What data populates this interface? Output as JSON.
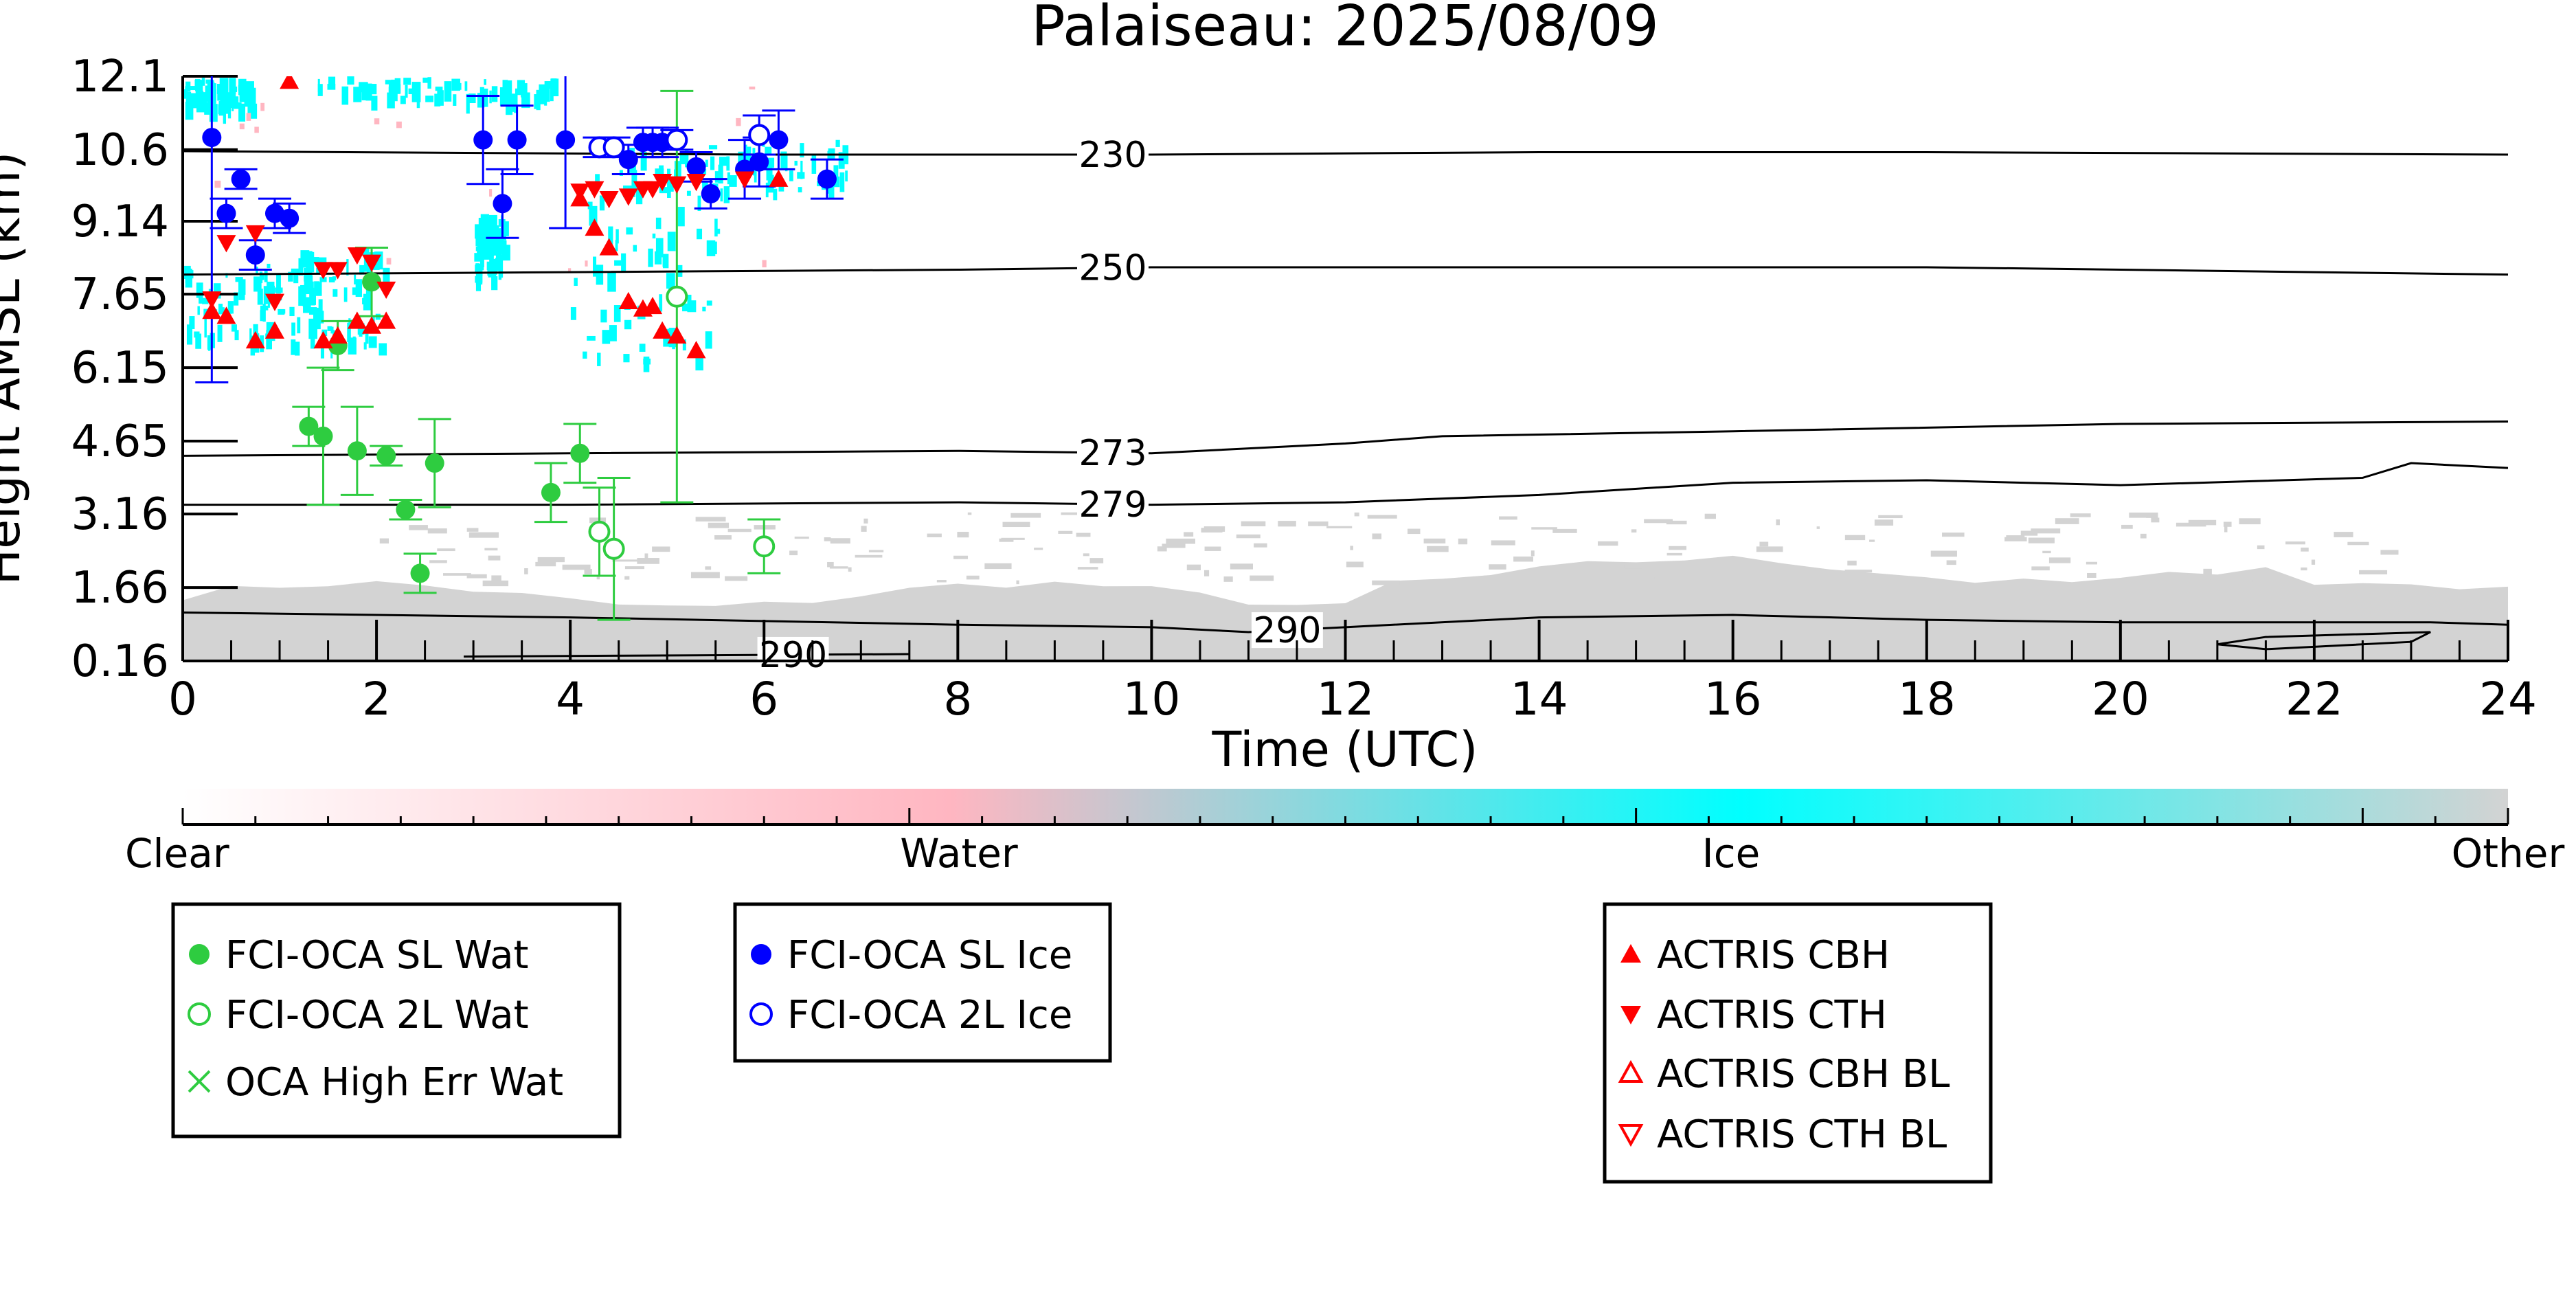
{
  "chart_data": {
    "type": "scatter",
    "title": "Palaiseau: 2025/08/09",
    "xlabel": "Time (UTC)",
    "ylabel": "Height AMSL (km)",
    "xlim": [
      0,
      24
    ],
    "ylim": [
      0.16,
      12.1
    ],
    "x_ticks": [
      "0",
      "2",
      "4",
      "6",
      "8",
      "10",
      "12",
      "14",
      "16",
      "18",
      "20",
      "22",
      "24"
    ],
    "y_ticks": [
      "0.16",
      "1.66",
      "3.16",
      "4.65",
      "6.15",
      "7.65",
      "9.14",
      "10.6",
      "12.1"
    ],
    "y_tick_values": [
      0.16,
      1.66,
      3.16,
      4.65,
      6.15,
      7.65,
      9.14,
      10.6,
      12.1
    ],
    "colorbar": {
      "labels": [
        "Clear",
        "Water",
        "Ice",
        "Other"
      ],
      "colors": [
        "#ffffff",
        "#ffb6c1",
        "#00ffff",
        "#d3d3d3"
      ]
    },
    "temperature_contours": [
      {
        "label": "230",
        "points": [
          [
            0,
            10.57
          ],
          [
            6,
            10.5
          ],
          [
            10,
            10.5
          ],
          [
            14,
            10.55
          ],
          [
            18,
            10.55
          ],
          [
            24,
            10.5
          ]
        ],
        "label_x": 9.6
      },
      {
        "label": "250",
        "points": [
          [
            0,
            8.05
          ],
          [
            4,
            8.1
          ],
          [
            8,
            8.15
          ],
          [
            10,
            8.2
          ],
          [
            14,
            8.2
          ],
          [
            18,
            8.2
          ],
          [
            22,
            8.1
          ],
          [
            24,
            8.05
          ]
        ],
        "label_x": 9.6
      },
      {
        "label": "273",
        "points": [
          [
            0,
            4.35
          ],
          [
            4,
            4.4
          ],
          [
            8,
            4.45
          ],
          [
            10,
            4.4
          ],
          [
            12,
            4.6
          ],
          [
            13,
            4.75
          ],
          [
            16,
            4.85
          ],
          [
            20,
            5.0
          ],
          [
            24,
            5.05
          ]
        ],
        "label_x": 9.6
      },
      {
        "label": "279",
        "points": [
          [
            0,
            3.35
          ],
          [
            4,
            3.35
          ],
          [
            8,
            3.4
          ],
          [
            10,
            3.35
          ],
          [
            12,
            3.4
          ],
          [
            14,
            3.55
          ],
          [
            16,
            3.8
          ],
          [
            18,
            3.85
          ],
          [
            20,
            3.75
          ],
          [
            22.5,
            3.9
          ],
          [
            23,
            4.2
          ],
          [
            24,
            4.1
          ]
        ],
        "label_x": 9.6
      },
      {
        "label": "290",
        "points": [
          [
            0,
            1.15
          ],
          [
            4,
            1.05
          ],
          [
            8,
            0.9
          ],
          [
            10,
            0.85
          ],
          [
            11,
            0.75
          ],
          [
            12,
            0.85
          ],
          [
            14,
            1.05
          ],
          [
            16,
            1.1
          ],
          [
            18,
            1.0
          ],
          [
            20,
            0.95
          ],
          [
            23.2,
            0.95
          ],
          [
            24,
            0.9
          ]
        ],
        "label_x": 11.4
      },
      {
        "label": "290",
        "points": [
          [
            2.9,
            0.25
          ],
          [
            7.5,
            0.3
          ]
        ],
        "label_x": 6.3
      },
      {
        "label": "",
        "points": [
          [
            21,
            0.5
          ],
          [
            21.5,
            0.65
          ],
          [
            23.2,
            0.75
          ],
          [
            23.0,
            0.55
          ],
          [
            21.5,
            0.4
          ],
          [
            21,
            0.5
          ]
        ],
        "label_x": null
      }
    ],
    "series": [
      {
        "name": "FCI-OCA SL Wat",
        "color": "#2ecc40",
        "marker": "filled-circle",
        "points": [
          [
            1.3,
            4.95,
            0.4
          ],
          [
            1.45,
            4.75,
            1.4
          ],
          [
            1.6,
            6.6,
            0.5
          ],
          [
            1.8,
            4.45,
            0.9
          ],
          [
            1.95,
            7.9,
            0.7
          ],
          [
            2.1,
            4.35,
            0.2
          ],
          [
            2.3,
            3.25,
            0.2
          ],
          [
            2.45,
            1.95,
            0.4
          ],
          [
            2.6,
            4.2,
            0.9
          ],
          [
            3.8,
            3.6,
            0.6
          ],
          [
            4.1,
            4.4,
            0.6
          ]
        ]
      },
      {
        "name": "FCI-OCA 2L Wat",
        "color": "#2ecc40",
        "marker": "open-circle",
        "points": [
          [
            4.3,
            2.8,
            0.9
          ],
          [
            4.45,
            2.45,
            1.45
          ],
          [
            5.1,
            7.6,
            4.2
          ],
          [
            6.0,
            2.5,
            0.55
          ]
        ]
      },
      {
        "name": "OCA High Err Wat",
        "color": "#2ecc40",
        "marker": "cross",
        "points": []
      },
      {
        "name": "FCI-OCA SL Ice",
        "color": "#0000ff",
        "marker": "filled-circle",
        "points": [
          [
            0.3,
            10.85,
            5.0
          ],
          [
            0.45,
            9.3,
            0.3
          ],
          [
            0.6,
            10.0,
            0.2
          ],
          [
            0.75,
            8.45,
            0.3
          ],
          [
            0.95,
            9.3,
            0.3
          ],
          [
            1.1,
            9.2,
            0.3
          ],
          [
            3.1,
            10.8,
            0.9
          ],
          [
            3.3,
            9.5,
            0.7
          ],
          [
            3.45,
            10.8,
            0.7
          ],
          [
            3.95,
            10.8,
            1.8
          ],
          [
            4.6,
            10.4,
            0.3
          ],
          [
            4.75,
            10.75,
            0.3
          ],
          [
            4.85,
            10.75,
            0.3
          ],
          [
            4.95,
            10.75,
            0.3
          ],
          [
            5.3,
            10.25,
            0.3
          ],
          [
            5.45,
            9.7,
            0.3
          ],
          [
            5.8,
            10.2,
            0.6
          ],
          [
            5.95,
            10.35,
            0.5
          ],
          [
            6.15,
            10.8,
            0.6
          ],
          [
            6.65,
            10.0,
            0.4
          ]
        ]
      },
      {
        "name": "FCI-OCA 2L Ice",
        "color": "#0000ff",
        "marker": "open-circle",
        "points": [
          [
            4.3,
            10.65,
            0.2
          ],
          [
            4.45,
            10.65,
            0.2
          ],
          [
            5.1,
            10.8,
            0.2
          ],
          [
            5.95,
            10.9,
            0.4
          ]
        ]
      },
      {
        "name": "ACTRIS CBH",
        "color": "#ff0000",
        "marker": "triangle-up",
        "points": [
          [
            0.3,
            7.3
          ],
          [
            0.45,
            7.2
          ],
          [
            0.75,
            6.7
          ],
          [
            0.95,
            6.9
          ],
          [
            1.1,
            12.0
          ],
          [
            1.45,
            6.7
          ],
          [
            1.6,
            6.8
          ],
          [
            1.8,
            7.1
          ],
          [
            1.95,
            7.0
          ],
          [
            2.1,
            7.1
          ],
          [
            4.1,
            9.6
          ],
          [
            4.25,
            9.0
          ],
          [
            4.4,
            8.6
          ],
          [
            4.6,
            7.5
          ],
          [
            4.75,
            7.35
          ],
          [
            4.85,
            7.4
          ],
          [
            4.95,
            6.9
          ],
          [
            5.1,
            6.8
          ],
          [
            5.3,
            6.5
          ],
          [
            6.15,
            10.0
          ]
        ]
      },
      {
        "name": "ACTRIS CTH",
        "color": "#ff0000",
        "marker": "triangle-down",
        "points": [
          [
            0.3,
            7.55
          ],
          [
            0.45,
            8.7
          ],
          [
            0.75,
            8.9
          ],
          [
            0.95,
            7.5
          ],
          [
            1.45,
            8.15
          ],
          [
            1.6,
            8.15
          ],
          [
            1.8,
            8.45
          ],
          [
            1.95,
            8.3
          ],
          [
            2.1,
            7.75
          ],
          [
            4.1,
            9.75
          ],
          [
            4.25,
            9.8
          ],
          [
            4.4,
            9.6
          ],
          [
            4.6,
            9.65
          ],
          [
            4.75,
            9.8
          ],
          [
            4.85,
            9.8
          ],
          [
            4.95,
            9.95
          ],
          [
            5.1,
            9.9
          ],
          [
            5.3,
            9.95
          ],
          [
            5.8,
            10.0
          ]
        ]
      },
      {
        "name": "ACTRIS CBH BL",
        "color": "#ff0000",
        "marker": "open-triangle-up",
        "points": []
      },
      {
        "name": "ACTRIS CTH BL",
        "color": "#ff0000",
        "marker": "open-triangle-down",
        "points": []
      }
    ],
    "legends": [
      {
        "entries": [
          "FCI-OCA SL Wat",
          "FCI-OCA 2L Wat",
          "OCA High Err Wat"
        ]
      },
      {
        "entries": [
          "FCI-OCA SL Ice",
          "FCI-OCA 2L Ice"
        ]
      },
      {
        "entries": [
          "ACTRIS CBH",
          "ACTRIS CTH",
          "ACTRIS CBH BL",
          "ACTRIS CTH BL"
        ]
      }
    ]
  }
}
